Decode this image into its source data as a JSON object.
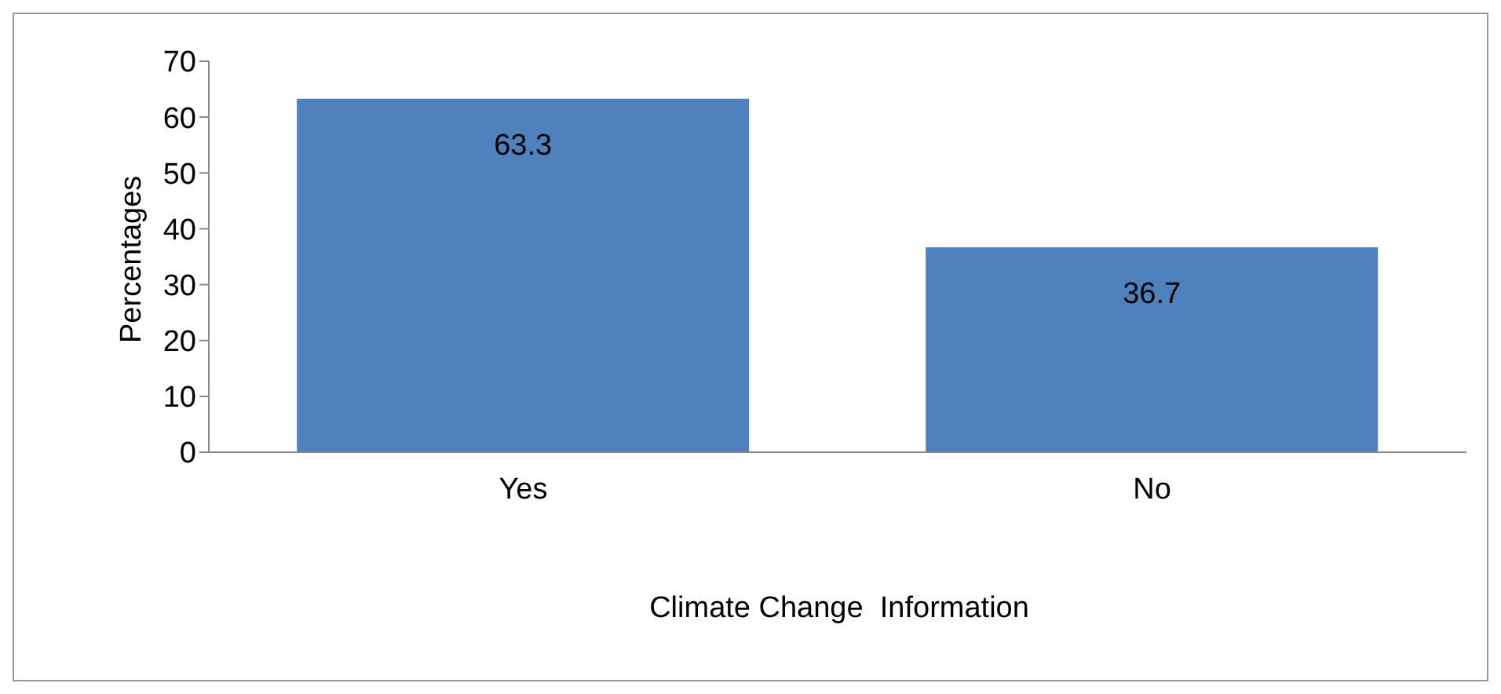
{
  "chart_data": {
    "type": "bar",
    "categories": [
      "Yes",
      "No"
    ],
    "values": [
      63.3,
      36.7
    ],
    "color": "#4f81bd",
    "xlabel": "Climate Change  Information",
    "ylabel": "Percentages",
    "ylim": [
      0,
      70
    ],
    "yticks": [
      0,
      10,
      20,
      30,
      40,
      50,
      60,
      70
    ],
    "data_labels": true,
    "grid": false,
    "legend": false
  }
}
